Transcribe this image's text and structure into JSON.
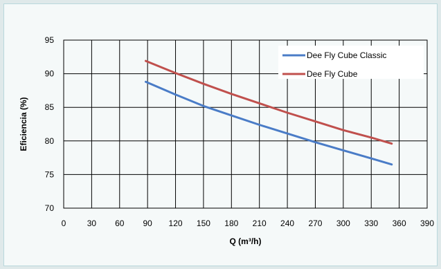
{
  "chart_data": {
    "type": "line",
    "xlabel": "Q (m³/h)",
    "ylabel": "Eficiencia (%)",
    "xlim": [
      0,
      390
    ],
    "ylim": [
      70,
      95
    ],
    "x_ticks": [
      "0",
      "30",
      "60",
      "90",
      "120",
      "150",
      "180",
      "210",
      "240",
      "270",
      "300",
      "330",
      "360",
      "390"
    ],
    "y_ticks": [
      "95",
      "90",
      "85",
      "80",
      "75",
      "70"
    ],
    "grid": true,
    "legend_position": "top-right",
    "series": [
      {
        "name": "Dee Fly Cube Classic",
        "color": "#4a7cc7",
        "x": [
          88,
          120,
          150,
          180,
          210,
          240,
          270,
          300,
          330,
          352
        ],
        "y": [
          88.8,
          86.9,
          85.2,
          83.8,
          82.4,
          81.1,
          79.8,
          78.6,
          77.4,
          76.5
        ]
      },
      {
        "name": "Dee Fly Cube",
        "color": "#c0504d",
        "x": [
          88,
          120,
          150,
          180,
          210,
          240,
          270,
          300,
          330,
          352
        ],
        "y": [
          91.9,
          90.1,
          88.5,
          87.0,
          85.6,
          84.2,
          82.9,
          81.6,
          80.5,
          79.6
        ]
      }
    ]
  }
}
